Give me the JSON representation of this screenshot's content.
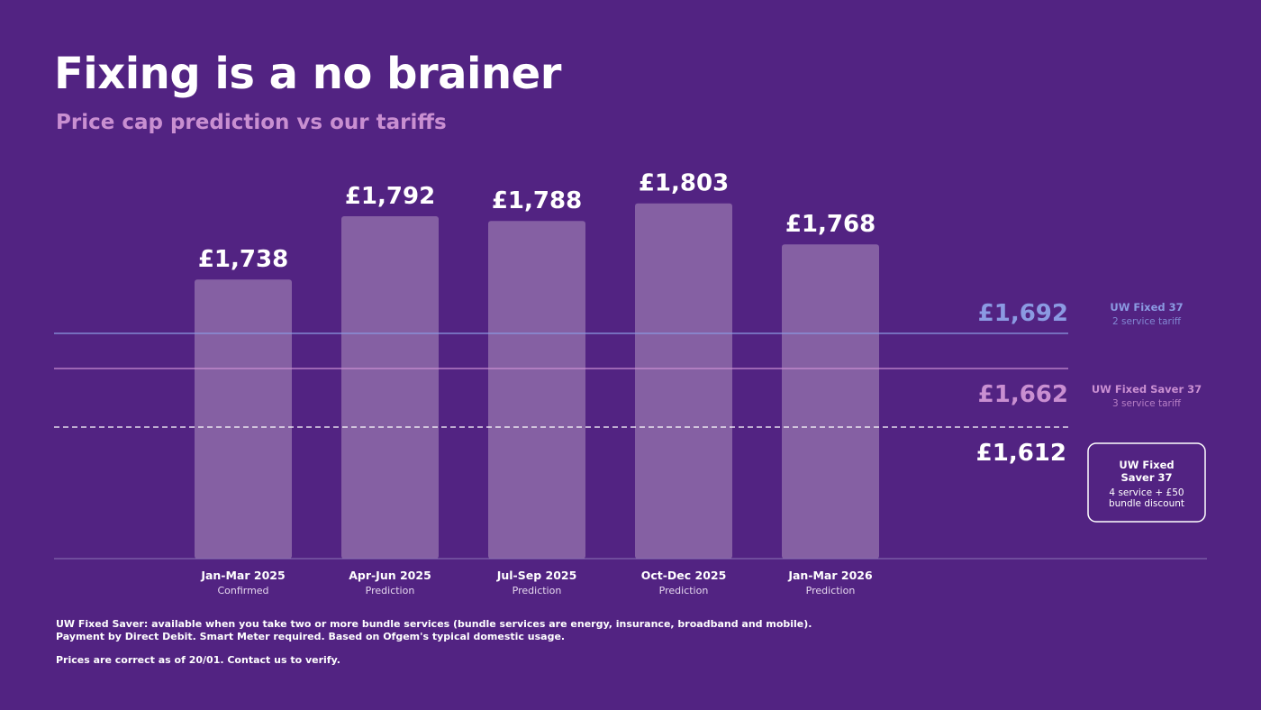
{
  "title": "Fixing is a no brainer",
  "subtitle": "Price cap prediction vs our tariffs",
  "colors": {
    "background": "#522382",
    "bar": "#8560a3",
    "tariff_2_service": "#8b9ae2",
    "tariff_3_service": "#c98fd1",
    "tariff_4_service": "#ffffff"
  },
  "chart_data": {
    "type": "bar",
    "title": "Price cap prediction vs our tariffs",
    "ylabel": "",
    "xlabel": "",
    "ylim": [
      1500,
      1820
    ],
    "grid": false,
    "categories": [
      "Jan-Mar 2025",
      "Apr-Jun 2025",
      "Jul-Sep 2025",
      "Oct-Dec 2025",
      "Jan-Mar 2026"
    ],
    "category_notes": [
      "Confirmed",
      "Prediction",
      "Prediction",
      "Prediction",
      "Prediction"
    ],
    "values": [
      1738,
      1792,
      1788,
      1803,
      1768
    ],
    "value_labels": [
      "£1,738",
      "£1,792",
      "£1,788",
      "£1,803",
      "£1,768"
    ],
    "reference_lines": [
      {
        "value": 1692,
        "label": "£1,692",
        "name": "UW Fixed 37",
        "description": "2 service tariff",
        "style": "solid",
        "color": "#8b9ae2"
      },
      {
        "value": 1662,
        "label": "£1,662",
        "name": "UW Fixed Saver 37",
        "description": "3 service tariff",
        "style": "solid",
        "color": "#c98fd1"
      },
      {
        "value": 1612,
        "label": "£1,612",
        "name_lines": [
          "UW Fixed",
          "Saver 37"
        ],
        "description_lines": [
          "4 service + £50",
          "bundle discount"
        ],
        "style": "dashed",
        "color": "#ffffff",
        "boxed": true
      }
    ]
  },
  "footnotes": {
    "line1": "UW Fixed Saver: available when you take two or more bundle services (bundle services are energy, insurance, broadband and mobile).",
    "line2": "Payment by Direct Debit. Smart Meter required. Based on Ofgem's typical domestic usage.",
    "line3": "Prices are correct as of 20/01. Contact us to verify."
  }
}
